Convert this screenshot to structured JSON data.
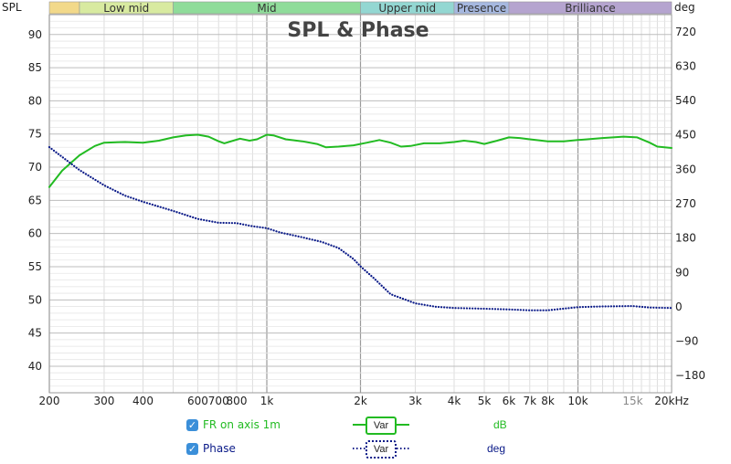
{
  "chart_data": {
    "type": "line",
    "title": "SPL & Phase",
    "y_left_label": "SPL",
    "y_right_label": "deg",
    "x_scale": "log",
    "x_range_hz": [
      200,
      20000
    ],
    "y_left_range": [
      36,
      93
    ],
    "y_right_range": [
      -225,
      765
    ],
    "grid": true,
    "bands": [
      {
        "label": "",
        "from": 200,
        "to": 250,
        "color": "#f2d98a"
      },
      {
        "label": "Low mid",
        "from": 250,
        "to": 500,
        "color": "#d8eaa0"
      },
      {
        "label": "Mid",
        "from": 500,
        "to": 2000,
        "color": "#8fdc9a"
      },
      {
        "label": "Upper mid",
        "from": 2000,
        "to": 4000,
        "color": "#93d7d2"
      },
      {
        "label": "Presence",
        "from": 4000,
        "to": 6000,
        "color": "#a6b8e0"
      },
      {
        "label": "Brilliance",
        "from": 6000,
        "to": 20000,
        "color": "#b5a4cf"
      }
    ],
    "x_ticks": [
      {
        "v": 200,
        "label": "200"
      },
      {
        "v": 300,
        "label": "300"
      },
      {
        "v": 400,
        "label": "400"
      },
      {
        "v": 600,
        "label": "600"
      },
      {
        "v": 700,
        "label": "700"
      },
      {
        "v": 800,
        "label": "800"
      },
      {
        "v": 1000,
        "label": "1k"
      },
      {
        "v": 2000,
        "label": "2k"
      },
      {
        "v": 3000,
        "label": "3k"
      },
      {
        "v": 4000,
        "label": "4k"
      },
      {
        "v": 5000,
        "label": "5k"
      },
      {
        "v": 6000,
        "label": "6k"
      },
      {
        "v": 7000,
        "label": "7k"
      },
      {
        "v": 8000,
        "label": "8k"
      },
      {
        "v": 10000,
        "label": "10k"
      },
      {
        "v": 15000,
        "label": "15k",
        "dim": true
      },
      {
        "v": 20000,
        "label": "20kHz"
      }
    ],
    "y_left_ticks": [
      40,
      45,
      50,
      55,
      60,
      65,
      70,
      75,
      80,
      85,
      90
    ],
    "y_right_ticks": [
      -180,
      -90,
      0,
      90,
      180,
      270,
      360,
      450,
      540,
      630,
      720
    ],
    "y_right_tick_labels": [
      "−180",
      "−90",
      "0",
      "90",
      "180",
      "270",
      "360",
      "450",
      "540",
      "630",
      "720"
    ],
    "series": [
      {
        "name": "FR on axis 1m",
        "axis": "left",
        "unit": "dB",
        "color": "#22bb22",
        "style": "solid",
        "points": [
          [
            200,
            67.0
          ],
          [
            220,
            69.5
          ],
          [
            250,
            71.8
          ],
          [
            280,
            73.2
          ],
          [
            300,
            73.7
          ],
          [
            350,
            73.8
          ],
          [
            400,
            73.7
          ],
          [
            450,
            74.0
          ],
          [
            500,
            74.5
          ],
          [
            550,
            74.8
          ],
          [
            600,
            74.9
          ],
          [
            650,
            74.6
          ],
          [
            700,
            73.9
          ],
          [
            730,
            73.6
          ],
          [
            780,
            74.0
          ],
          [
            820,
            74.3
          ],
          [
            880,
            74.0
          ],
          [
            930,
            74.2
          ],
          [
            1000,
            74.9
          ],
          [
            1050,
            74.8
          ],
          [
            1150,
            74.2
          ],
          [
            1300,
            73.9
          ],
          [
            1450,
            73.5
          ],
          [
            1550,
            73.0
          ],
          [
            1700,
            73.1
          ],
          [
            1900,
            73.3
          ],
          [
            2100,
            73.7
          ],
          [
            2300,
            74.1
          ],
          [
            2500,
            73.7
          ],
          [
            2700,
            73.1
          ],
          [
            2900,
            73.2
          ],
          [
            3200,
            73.6
          ],
          [
            3600,
            73.6
          ],
          [
            4000,
            73.8
          ],
          [
            4300,
            74.0
          ],
          [
            4700,
            73.8
          ],
          [
            5000,
            73.5
          ],
          [
            5500,
            74.0
          ],
          [
            6000,
            74.5
          ],
          [
            6500,
            74.4
          ],
          [
            7000,
            74.2
          ],
          [
            8000,
            73.9
          ],
          [
            9000,
            73.9
          ],
          [
            10000,
            74.1
          ],
          [
            12000,
            74.4
          ],
          [
            14000,
            74.6
          ],
          [
            15500,
            74.5
          ],
          [
            17000,
            73.7
          ],
          [
            18000,
            73.1
          ],
          [
            20000,
            72.9
          ]
        ]
      },
      {
        "name": "Phase",
        "axis": "right",
        "unit": "deg",
        "color": "#0a1a88",
        "style": "dotted",
        "points": [
          [
            200,
            418
          ],
          [
            250,
            358
          ],
          [
            300,
            318
          ],
          [
            350,
            291
          ],
          [
            400,
            275
          ],
          [
            500,
            251
          ],
          [
            600,
            230
          ],
          [
            700,
            220
          ],
          [
            800,
            219
          ],
          [
            900,
            211
          ],
          [
            1000,
            206
          ],
          [
            1100,
            195
          ],
          [
            1300,
            182
          ],
          [
            1500,
            170
          ],
          [
            1700,
            154
          ],
          [
            1900,
            125
          ],
          [
            2000,
            106
          ],
          [
            2200,
            76
          ],
          [
            2500,
            33
          ],
          [
            3000,
            9
          ],
          [
            3500,
            0
          ],
          [
            4000,
            -3
          ],
          [
            5000,
            -5
          ],
          [
            6000,
            -7
          ],
          [
            7000,
            -9
          ],
          [
            8000,
            -9
          ],
          [
            10000,
            -1
          ],
          [
            12000,
            1
          ],
          [
            15000,
            2
          ],
          [
            17000,
            -2
          ],
          [
            20000,
            -3
          ]
        ]
      }
    ]
  },
  "legend": [
    {
      "checked": "✓",
      "name": "FR on axis 1m",
      "var": "Var",
      "unit": "dB"
    },
    {
      "checked": "✓",
      "name": "Phase",
      "var": "Var",
      "unit": "deg"
    }
  ]
}
